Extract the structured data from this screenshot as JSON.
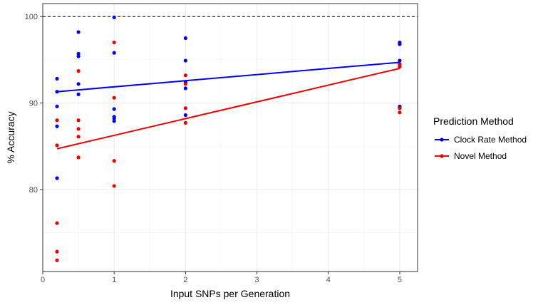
{
  "chart_data": {
    "type": "scatter",
    "title": "",
    "xlabel": "Input SNPs per Generation",
    "ylabel": "% Accuracy",
    "xlim": [
      0,
      5.25
    ],
    "ylim": [
      70.5,
      101.5
    ],
    "x_ticks": [
      0,
      1,
      2,
      3,
      4,
      5
    ],
    "x_tick_labels": [
      "0",
      "1",
      "2",
      "3",
      "4",
      "5"
    ],
    "y_ticks": [
      80,
      90,
      100
    ],
    "y_tick_labels": [
      "80",
      "90",
      "100"
    ],
    "grid": true,
    "reference_line": {
      "y": 100,
      "style": "dashed"
    },
    "legend": {
      "title": "Prediction Method",
      "position": "right"
    },
    "series": [
      {
        "name": "Clock Rate Method",
        "color": "#0000ee",
        "points": [
          [
            0.2,
            92.8
          ],
          [
            0.2,
            91.3
          ],
          [
            0.2,
            89.6
          ],
          [
            0.2,
            87.3
          ],
          [
            0.2,
            81.3
          ],
          [
            0.5,
            98.2
          ],
          [
            0.5,
            95.7
          ],
          [
            0.5,
            95.4
          ],
          [
            0.5,
            92.2
          ],
          [
            0.5,
            91.0
          ],
          [
            1,
            99.9
          ],
          [
            1,
            95.8
          ],
          [
            1,
            89.3
          ],
          [
            1,
            88.4
          ],
          [
            1,
            88.2
          ],
          [
            1,
            87.9
          ],
          [
            2,
            97.5
          ],
          [
            2,
            94.9
          ],
          [
            2,
            92.4
          ],
          [
            2,
            91.7
          ],
          [
            2,
            88.6
          ],
          [
            5,
            97.0
          ],
          [
            5,
            96.8
          ],
          [
            5,
            94.9
          ],
          [
            5,
            94.5
          ],
          [
            5,
            94.2
          ],
          [
            5,
            89.6
          ],
          [
            5,
            89.4
          ]
        ],
        "trend": [
          [
            0.2,
            91.3
          ],
          [
            5,
            94.7
          ]
        ]
      },
      {
        "name": "Novel Method",
        "color": "#ee0000",
        "points": [
          [
            0.2,
            88.0
          ],
          [
            0.2,
            85.1
          ],
          [
            0.2,
            76.1
          ],
          [
            0.2,
            72.8
          ],
          [
            0.2,
            71.8
          ],
          [
            0.5,
            93.7
          ],
          [
            0.5,
            88.0
          ],
          [
            0.5,
            87.0
          ],
          [
            0.5,
            86.1
          ],
          [
            0.5,
            83.7
          ],
          [
            1,
            97.0
          ],
          [
            1,
            90.6
          ],
          [
            1,
            83.3
          ],
          [
            1,
            80.4
          ],
          [
            2,
            93.2
          ],
          [
            2,
            92.2
          ],
          [
            2,
            89.4
          ],
          [
            2,
            87.7
          ],
          [
            5,
            94.5
          ],
          [
            5,
            94.2
          ],
          [
            5,
            89.4
          ],
          [
            5,
            88.9
          ]
        ],
        "trend": [
          [
            0.2,
            84.7
          ],
          [
            5,
            94.0
          ]
        ]
      }
    ]
  }
}
